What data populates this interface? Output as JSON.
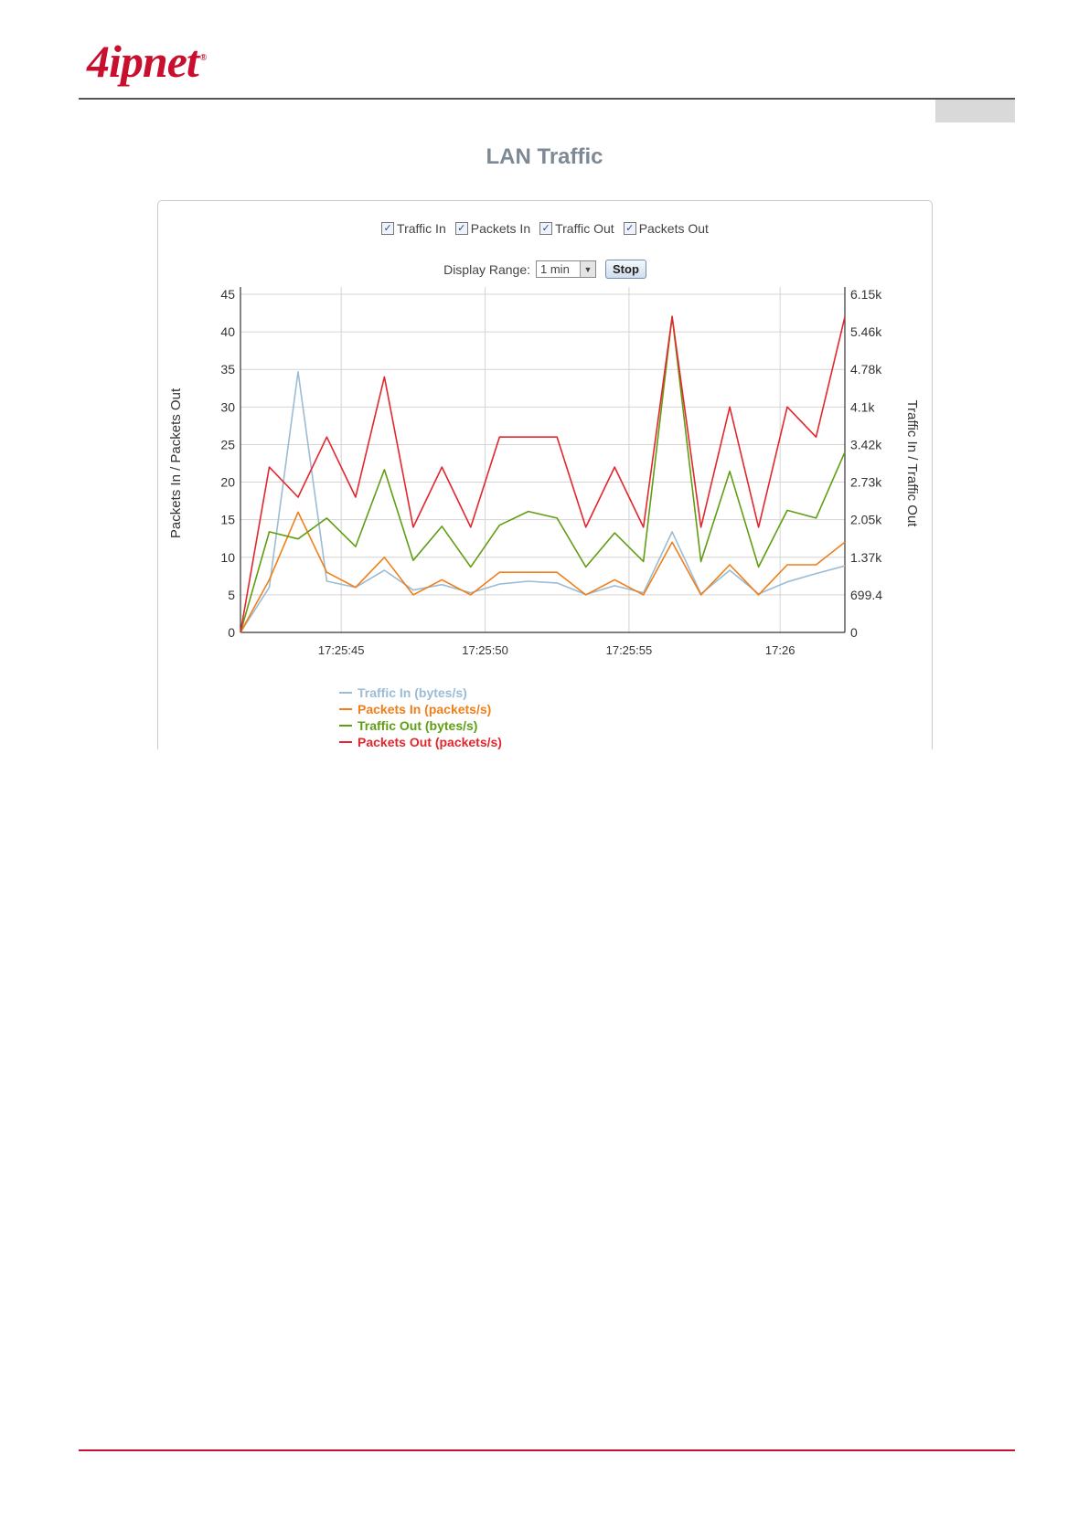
{
  "brand": {
    "logo_text": "4ipnet",
    "registered": "®"
  },
  "page": {
    "title": "LAN Traffic"
  },
  "controls": {
    "toggles": [
      {
        "label": "Traffic In",
        "checked": true
      },
      {
        "label": "Packets In",
        "checked": true
      },
      {
        "label": "Traffic Out",
        "checked": true
      },
      {
        "label": "Packets Out",
        "checked": true
      }
    ],
    "display_range_label": "Display Range:",
    "display_range_value": "1 min",
    "stop_label": "Stop"
  },
  "chart_data": {
    "type": "line",
    "x": [
      "17:25:41",
      "17:25:42",
      "17:25:43",
      "17:25:44",
      "17:25:45",
      "17:25:46",
      "17:25:47",
      "17:25:48",
      "17:25:49",
      "17:25:50",
      "17:25:51",
      "17:25:52",
      "17:25:53",
      "17:25:54",
      "17:25:55",
      "17:25:56",
      "17:25:57",
      "17:25:58",
      "17:25:59",
      "17:26:00",
      "17:26:01",
      "17:26:02"
    ],
    "x_tick_labels": [
      "17:25:45",
      "17:25:50",
      "17:25:55",
      "17:26"
    ],
    "x_ticks_at_index": [
      3.5,
      8.5,
      13.5,
      18.75
    ],
    "y_left": {
      "label": "Packets In / Packets Out",
      "range": [
        0,
        45
      ],
      "ticks": [
        "0",
        "5",
        "10",
        "15",
        "20",
        "25",
        "30",
        "35",
        "40",
        "45"
      ]
    },
    "y_right": {
      "label": "Traffic In / Traffic Out",
      "range": [
        0,
        6150
      ],
      "ticks": [
        "0",
        "699.4",
        "1.37k",
        "2.05k",
        "2.73k",
        "3.42k",
        "4.1k",
        "4.78k",
        "5.46k",
        "6.15k"
      ]
    },
    "grid": true,
    "legend_position": "bottom",
    "series": [
      {
        "name": "Traffic In (bytes/s)",
        "axis": "right",
        "color": "#9bbcd4",
        "values": [
          0,
          820,
          4740,
          930,
          820,
          1130,
          770,
          870,
          720,
          880,
          930,
          900,
          690,
          850,
          720,
          1830,
          700,
          1130,
          700,
          920,
          1070,
          1210
        ]
      },
      {
        "name": "Packets In (packets/s)",
        "axis": "left",
        "color": "#ef7f1a",
        "values": [
          0,
          7,
          16,
          8,
          6,
          10,
          5,
          7,
          5,
          8,
          8,
          8,
          5,
          7,
          5,
          12,
          5,
          9,
          5,
          9,
          9,
          12
        ]
      },
      {
        "name": "Traffic Out (bytes/s)",
        "axis": "right",
        "color": "#5f9e12",
        "values": [
          0,
          1830,
          1700,
          2080,
          1560,
          2960,
          1310,
          1930,
          1190,
          1950,
          2200,
          2080,
          1190,
          1810,
          1290,
          5750,
          1290,
          2930,
          1190,
          2220,
          2080,
          3280
        ]
      },
      {
        "name": "Packets Out (packets/s)",
        "axis": "left",
        "color": "#e3262d",
        "values": [
          0,
          22,
          18,
          26,
          18,
          34,
          14,
          22,
          14,
          26,
          26,
          26,
          14,
          22,
          14,
          42,
          14,
          30,
          14,
          30,
          26,
          42
        ]
      }
    ]
  }
}
